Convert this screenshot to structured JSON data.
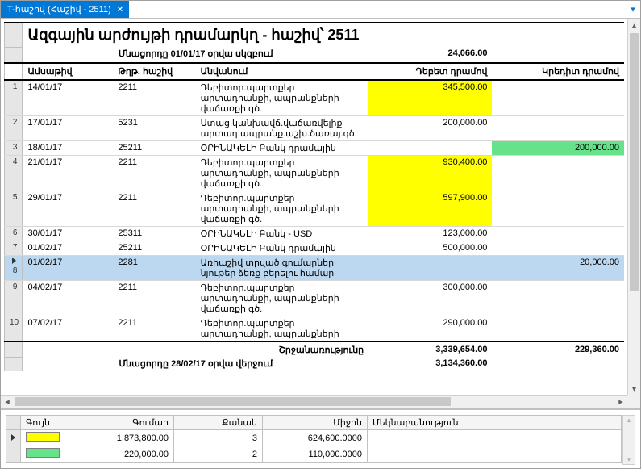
{
  "tab": {
    "title": "T-հաշիվ (Հաշիվ - 2511)"
  },
  "report": {
    "title": "Ազգային արժույթի դրամարկղ - հաշիվ՝ 2511",
    "opening_label": "Մնացորդը 01/01/17 օրվա սկզբում",
    "opening_value": "24,066.00",
    "columns": {
      "date": "Ամսաթիվ",
      "account": "Թղթ. հաշիվ",
      "description": "Անվանում",
      "debit": "Դեբետ դրամով",
      "credit": "Կրեդիտ դրամով"
    },
    "rows": [
      {
        "n": "1",
        "date": "14/01/17",
        "acct": "2211",
        "desc": "Դեբիտոր.պարտքեր արտադրանքի, ապրանքների վաճառքի գծ.",
        "debit": "345,500.00",
        "credit": "",
        "debit_hl": "yellow"
      },
      {
        "n": "2",
        "date": "17/01/17",
        "acct": "5231",
        "desc": "Ստաց.կանխավճ.վաճառվելիք արտադ.ապրանք.աշխ.ծառայ.գծ.",
        "debit": "200,000.00",
        "credit": ""
      },
      {
        "n": "3",
        "date": "18/01/17",
        "acct": "25211",
        "desc": "ՕՐԻՆԱԿԵԼԻ Բանկ դրամային",
        "debit": "",
        "credit": "200,000.00",
        "credit_hl": "green"
      },
      {
        "n": "4",
        "date": "21/01/17",
        "acct": "2211",
        "desc": "Դեբիտոր.պարտքեր արտադրանքի, ապրանքների վաճառքի գծ.",
        "debit": "930,400.00",
        "credit": "",
        "debit_hl": "yellow"
      },
      {
        "n": "5",
        "date": "29/01/17",
        "acct": "2211",
        "desc": "Դեբիտոր.պարտքեր արտադրանքի, ապրանքների վաճառքի գծ.",
        "debit": "597,900.00",
        "credit": "",
        "debit_hl": "yellow"
      },
      {
        "n": "6",
        "date": "30/01/17",
        "acct": "25311",
        "desc": "ՕՐԻՆԱԿԵԼԻ Բանկ - USD",
        "debit": "123,000.00",
        "credit": ""
      },
      {
        "n": "7",
        "date": "01/02/17",
        "acct": "25211",
        "desc": "ՕՐԻՆԱԿԵԼԻ Բանկ դրամային",
        "debit": "500,000.00",
        "credit": ""
      },
      {
        "n": "8",
        "date": "01/02/17",
        "acct": "2281",
        "desc": "Առհաշիվ տրված գումարներ նյութեր ձեռք բերելու համար",
        "debit": "",
        "credit": "20,000.00",
        "credit_hl": "green",
        "selected": true
      },
      {
        "n": "9",
        "date": "04/02/17",
        "acct": "2211",
        "desc": "Դեբիտոր.պարտքեր արտադրանքի, ապրանքների վաճառքի գծ.",
        "debit": "300,000.00",
        "credit": ""
      },
      {
        "n": "10",
        "date": "07/02/17",
        "acct": "2211",
        "desc": "Դեբիտոր.պարտքեր արտադրանքի, ապրանքների",
        "debit": "290,000.00",
        "credit": ""
      }
    ],
    "turnover_label": "Շրջանառությունը",
    "turnover_debit": "3,339,654.00",
    "turnover_credit": "229,360.00",
    "closing_label": "Մնացորդը 28/02/17 օրվա վերջում",
    "closing_value": "3,134,360.00"
  },
  "legend": {
    "columns": {
      "color": "Գույն",
      "amount": "Գումար",
      "count": "Քանակ",
      "avg": "Միջին",
      "comment": "Մեկնաբանություն"
    },
    "rows": [
      {
        "swatch": "#ffff00",
        "amount": "1,873,800.00",
        "count": "3",
        "avg": "624,600.0000",
        "comment": ""
      },
      {
        "swatch": "#66e28a",
        "amount": "220,000.00",
        "count": "2",
        "avg": "110,000.0000",
        "comment": ""
      }
    ]
  },
  "colors": {
    "accent": "#0078d7",
    "highlight_yellow": "#ffff00",
    "highlight_green": "#66e28a",
    "selection": "#bcd8f0"
  }
}
